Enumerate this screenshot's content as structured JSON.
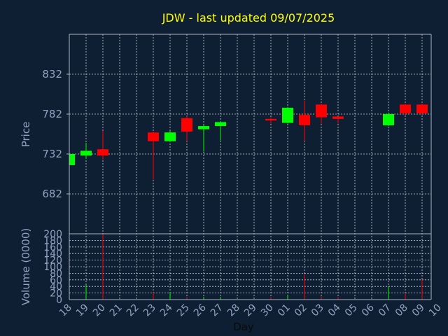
{
  "colors": {
    "background": "#0f1f33",
    "axis": "#aab6c4",
    "grid": "#c8d0d8",
    "title": "#ffff00",
    "label": "#8fa3c0",
    "up": "#00ff00",
    "down": "#ff0000"
  },
  "chart_data": {
    "type": "candlestick",
    "title": "JDW - last updated 09/07/2025",
    "xlabel": "Day",
    "ylabel": "Price",
    "volume_label": "Volume (0000)",
    "grid": true,
    "price_ylim": [
      632,
      882
    ],
    "price_ticks": [
      682,
      732,
      782,
      832
    ],
    "volume_ylim": [
      0,
      200
    ],
    "volume_ticks": [
      0,
      20,
      40,
      60,
      80,
      100,
      120,
      140,
      160,
      180,
      200
    ],
    "x_ticks": [
      "18",
      "19",
      "20",
      "21",
      "22",
      "23",
      "24",
      "25",
      "26",
      "27",
      "28",
      "29",
      "30",
      "01",
      "02",
      "03",
      "04",
      "05",
      "06",
      "07",
      "08",
      "09",
      "10"
    ],
    "candles": [
      {
        "x": "18",
        "open": 718,
        "close": 732,
        "high": 733,
        "low": 716,
        "volume": 4
      },
      {
        "x": "19",
        "open": 730,
        "close": 736,
        "high": 746,
        "low": 726,
        "volume": 45
      },
      {
        "x": "20",
        "open": 738,
        "close": 730,
        "high": 761,
        "low": 725,
        "volume": 200
      },
      {
        "x": "23",
        "open": 759,
        "close": 748,
        "high": 760,
        "low": 700,
        "volume": 22
      },
      {
        "x": "24",
        "open": 748,
        "close": 759,
        "high": 761,
        "low": 747,
        "volume": 22
      },
      {
        "x": "25",
        "open": 777,
        "close": 760,
        "high": 779,
        "low": 748,
        "volume": 8
      },
      {
        "x": "26",
        "open": 763,
        "close": 767,
        "high": 768,
        "low": 735,
        "volume": 8
      },
      {
        "x": "27",
        "open": 767,
        "close": 772,
        "high": 773,
        "low": 749,
        "volume": 8
      },
      {
        "x": "30",
        "open": 776,
        "close": 774,
        "high": 778,
        "low": 770,
        "volume": 8
      },
      {
        "x": "01",
        "open": 771,
        "close": 790,
        "high": 791,
        "low": 770,
        "volume": 14
      },
      {
        "x": "02",
        "open": 781,
        "close": 768,
        "high": 799,
        "low": 748,
        "volume": 78
      },
      {
        "x": "03",
        "open": 794,
        "close": 778,
        "high": 795,
        "low": 770,
        "volume": 10
      },
      {
        "x": "04",
        "open": 779,
        "close": 776,
        "high": 779,
        "low": 770,
        "volume": 8
      },
      {
        "x": "07",
        "open": 768,
        "close": 782,
        "high": 784,
        "low": 767,
        "volume": 40
      },
      {
        "x": "08",
        "open": 794,
        "close": 783,
        "high": 795,
        "low": 780,
        "volume": 20
      },
      {
        "x": "09",
        "open": 794,
        "close": 783,
        "high": 795,
        "low": 781,
        "volume": 62
      }
    ]
  }
}
